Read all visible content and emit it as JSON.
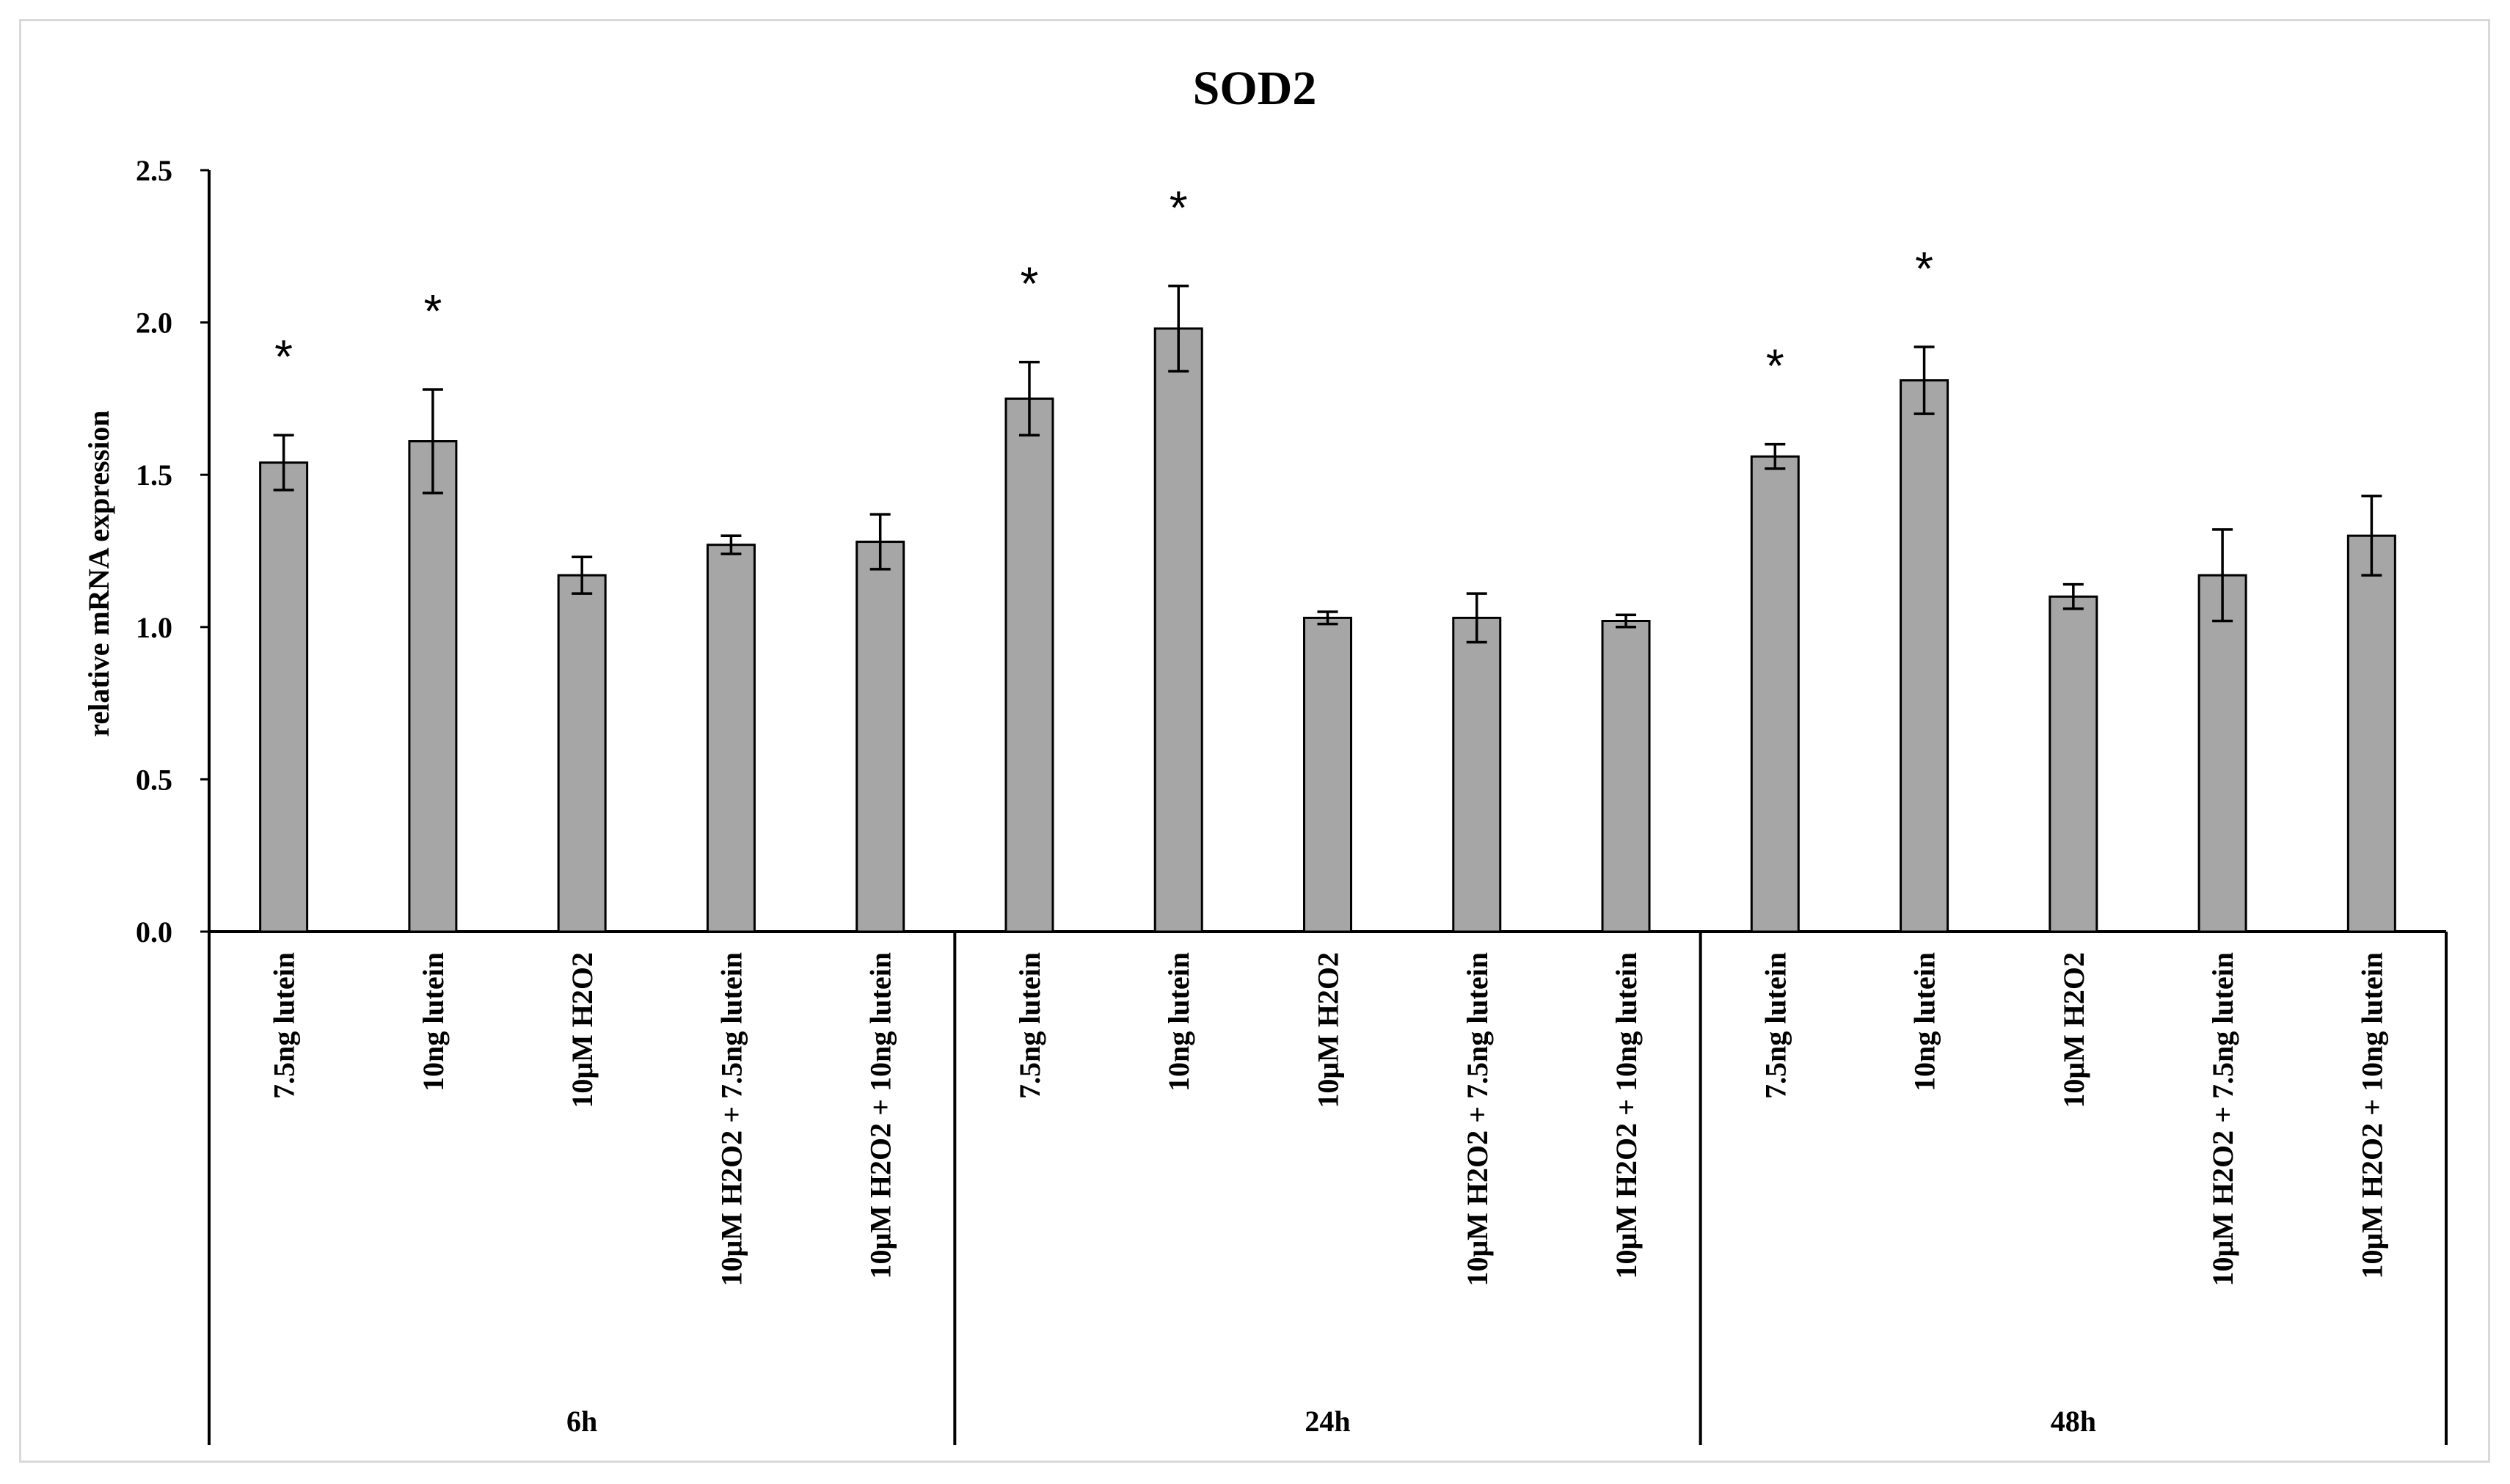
{
  "chart_data": {
    "type": "bar",
    "title": "SOD2",
    "ylabel": "relative mRNA expression",
    "xlabel": "",
    "ylim": [
      0,
      2.5
    ],
    "yticks": [
      "0.0",
      "0.5",
      "1.0",
      "1.5",
      "2.0",
      "2.5"
    ],
    "grid": false,
    "groups": [
      {
        "label": "6h",
        "categories": [
          "7.5ng lutein",
          "10ng lutein",
          "10μM H2O2",
          "10μM H2O2 + 7.5ng lutein",
          "10μM H2O2 + 10ng lutein"
        ],
        "values": [
          1.54,
          1.61,
          1.17,
          1.27,
          1.28
        ],
        "errors": [
          0.09,
          0.17,
          0.06,
          0.03,
          0.09
        ],
        "significance": [
          "*",
          "*",
          "",
          "",
          ""
        ]
      },
      {
        "label": "24h",
        "categories": [
          "7.5ng lutein",
          "10ng lutein",
          "10μM H2O2",
          "10μM H2O2 + 7.5ng lutein",
          "10μM H2O2 + 10ng lutein"
        ],
        "values": [
          1.75,
          1.98,
          1.03,
          1.03,
          1.02
        ],
        "errors": [
          0.12,
          0.14,
          0.02,
          0.08,
          0.02
        ],
        "significance": [
          "*",
          "*",
          "",
          "",
          ""
        ]
      },
      {
        "label": "48h",
        "categories": [
          "7.5ng lutein",
          "10ng lutein",
          "10μM H2O2",
          "10μM H2O2 + 7.5ng lutein",
          "10μM H2O2 + 10ng lutein"
        ],
        "values": [
          1.56,
          1.81,
          1.1,
          1.17,
          1.3
        ],
        "errors": [
          0.04,
          0.11,
          0.04,
          0.15,
          0.13
        ],
        "significance": [
          "*",
          "*",
          "",
          "",
          ""
        ]
      }
    ],
    "colors": {
      "bar_fill": "#a6a6a6",
      "bar_stroke": "#000000",
      "axis": "#000000",
      "frame": "#d9d9d9"
    }
  }
}
